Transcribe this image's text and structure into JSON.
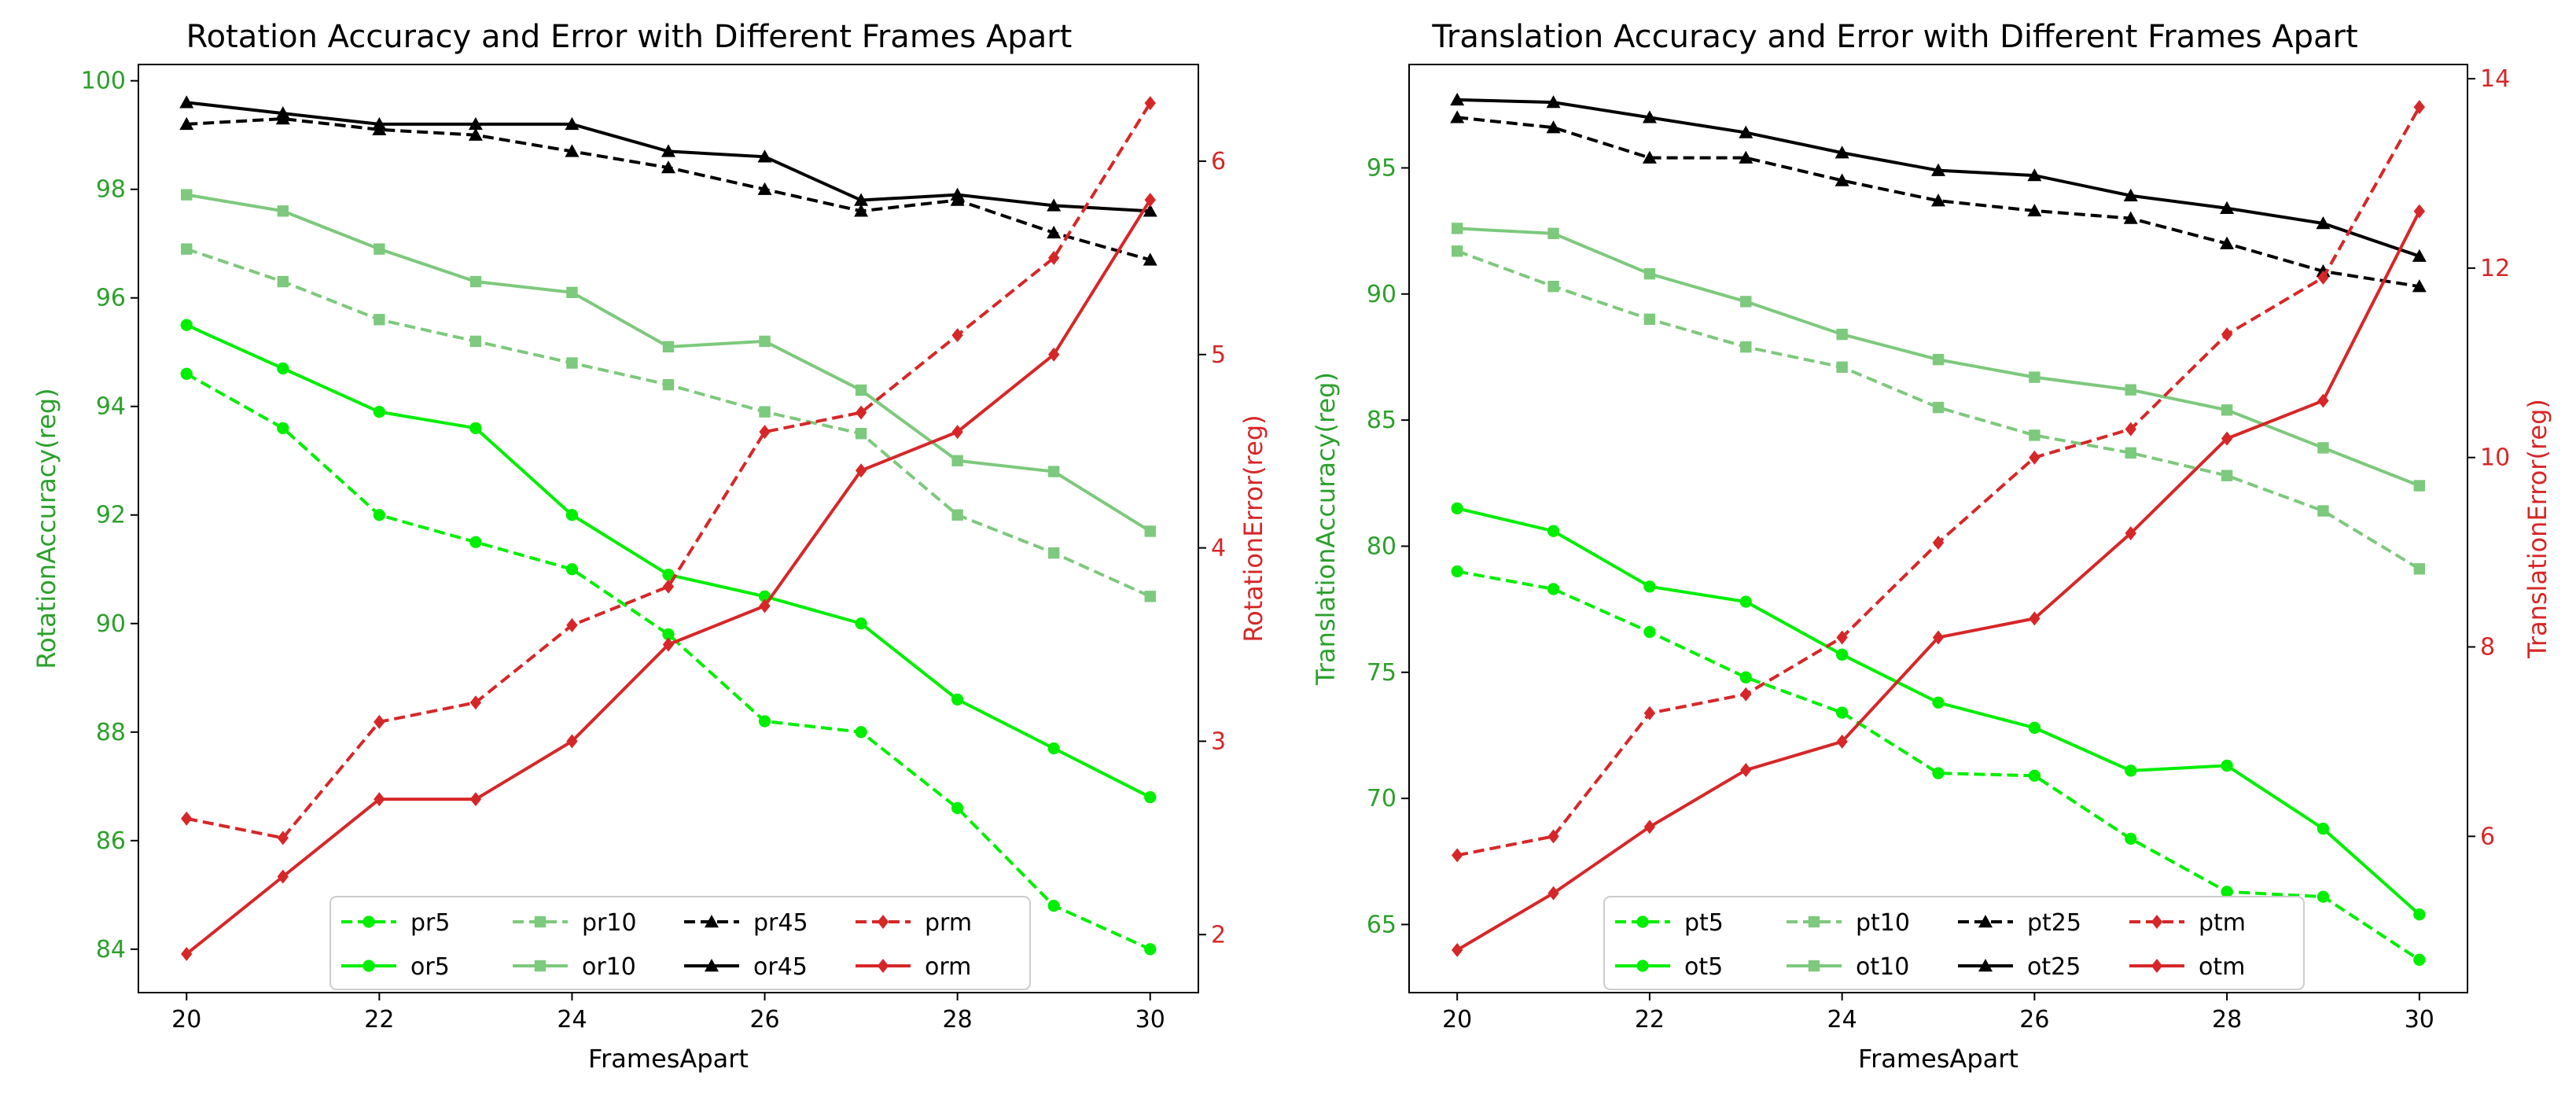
{
  "chart_data": [
    {
      "type": "line",
      "title": "Rotation Accuracy and Error with Different Frames Apart",
      "xlabel": "FramesApart",
      "ylabel_left": "RotationAccuracy(reg)",
      "ylabel_right": "RotationError(reg)",
      "x": [
        20,
        21,
        22,
        23,
        24,
        25,
        26,
        27,
        28,
        29,
        30
      ],
      "xlim": [
        19.5,
        30.5
      ],
      "xticks": [
        20,
        22,
        24,
        26,
        28,
        30
      ],
      "ylim_left": [
        83.2,
        100.3
      ],
      "yticks_left": [
        84,
        86,
        88,
        90,
        92,
        94,
        96,
        98,
        100
      ],
      "ylim_right": [
        1.7,
        6.5
      ],
      "yticks_right": [
        2,
        3,
        4,
        5,
        6
      ],
      "series": [
        {
          "name": "pr5",
          "axis": "left",
          "color": "#00ee00",
          "dash": true,
          "marker": "circle",
          "values": [
            94.6,
            93.6,
            92.0,
            91.5,
            91.0,
            89.8,
            88.2,
            88.0,
            86.6,
            84.8,
            84.0
          ]
        },
        {
          "name": "or5",
          "axis": "left",
          "color": "#00ee00",
          "dash": false,
          "marker": "circle",
          "values": [
            95.5,
            94.7,
            93.9,
            93.6,
            92.0,
            90.9,
            90.5,
            90.0,
            88.6,
            87.7,
            86.8
          ]
        },
        {
          "name": "pr10",
          "axis": "left",
          "color": "#7dc97d",
          "dash": true,
          "marker": "square",
          "values": [
            96.9,
            96.3,
            95.6,
            95.2,
            94.8,
            94.4,
            93.9,
            93.5,
            92.0,
            91.3,
            90.5
          ]
        },
        {
          "name": "or10",
          "axis": "left",
          "color": "#7dc97d",
          "dash": false,
          "marker": "square",
          "values": [
            97.9,
            97.6,
            96.9,
            96.3,
            96.1,
            95.1,
            95.2,
            94.3,
            93.0,
            92.8,
            91.7
          ]
        },
        {
          "name": "pr45",
          "axis": "left",
          "color": "#000000",
          "dash": true,
          "marker": "triangle",
          "values": [
            99.2,
            99.3,
            99.1,
            99.0,
            98.7,
            98.4,
            98.0,
            97.6,
            97.8,
            97.2,
            96.7
          ]
        },
        {
          "name": "or45",
          "axis": "left",
          "color": "#000000",
          "dash": false,
          "marker": "triangle",
          "values": [
            99.6,
            99.4,
            99.2,
            99.2,
            99.2,
            98.7,
            98.6,
            97.8,
            97.9,
            97.7,
            97.6
          ]
        },
        {
          "name": "prm",
          "axis": "right",
          "color": "#d62728",
          "dash": true,
          "marker": "diamond",
          "values": [
            2.6,
            2.5,
            3.1,
            3.2,
            3.6,
            3.8,
            4.6,
            4.7,
            5.1,
            5.5,
            6.3
          ]
        },
        {
          "name": "orm",
          "axis": "right",
          "color": "#d62728",
          "dash": false,
          "marker": "diamond",
          "values": [
            1.9,
            2.3,
            2.7,
            2.7,
            3.0,
            3.5,
            3.7,
            4.4,
            4.6,
            5.0,
            5.8
          ]
        }
      ],
      "legend": {
        "placement": "lower-center",
        "order": [
          "pr5",
          "pr10",
          "pr45",
          "prm",
          "or5",
          "or10",
          "or45",
          "orm"
        ]
      }
    },
    {
      "type": "line",
      "title": "Translation Accuracy and Error with Different Frames Apart",
      "xlabel": "FramesApart",
      "ylabel_left": "TranslationAccuracy(reg)",
      "ylabel_right": "TranslationError(reg)",
      "x": [
        20,
        21,
        22,
        23,
        24,
        25,
        26,
        27,
        28,
        29,
        30
      ],
      "xlim": [
        19.5,
        30.5
      ],
      "xticks": [
        20,
        22,
        24,
        26,
        28,
        30
      ],
      "ylim_left": [
        62.3,
        99.1
      ],
      "yticks_left": [
        65,
        70,
        75,
        80,
        85,
        90,
        95
      ],
      "ylim_right": [
        4.35,
        14.15
      ],
      "yticks_right": [
        6,
        8,
        10,
        12,
        14
      ],
      "series": [
        {
          "name": "pt5",
          "axis": "left",
          "color": "#00ee00",
          "dash": true,
          "marker": "circle",
          "values": [
            79.0,
            78.3,
            76.6,
            74.8,
            73.4,
            71.0,
            70.9,
            68.4,
            66.3,
            66.1,
            63.6
          ]
        },
        {
          "name": "ot5",
          "axis": "left",
          "color": "#00ee00",
          "dash": false,
          "marker": "circle",
          "values": [
            81.5,
            80.6,
            78.4,
            77.8,
            75.7,
            73.8,
            72.8,
            71.1,
            71.3,
            68.8,
            65.4
          ]
        },
        {
          "name": "pt10",
          "axis": "left",
          "color": "#7dc97d",
          "dash": true,
          "marker": "square",
          "values": [
            91.7,
            90.3,
            89.0,
            87.9,
            87.1,
            85.5,
            84.4,
            83.7,
            82.8,
            81.4,
            79.1
          ]
        },
        {
          "name": "ot10",
          "axis": "left",
          "color": "#7dc97d",
          "dash": false,
          "marker": "square",
          "values": [
            92.6,
            92.4,
            90.8,
            89.7,
            88.4,
            87.4,
            86.7,
            86.2,
            85.4,
            83.9,
            82.4
          ]
        },
        {
          "name": "pt25",
          "axis": "left",
          "color": "#000000",
          "dash": true,
          "marker": "triangle",
          "values": [
            97.0,
            96.6,
            95.4,
            95.4,
            94.5,
            93.7,
            93.3,
            93.0,
            92.0,
            90.9,
            90.3
          ]
        },
        {
          "name": "ot25",
          "axis": "left",
          "color": "#000000",
          "dash": false,
          "marker": "triangle",
          "values": [
            97.7,
            97.6,
            97.0,
            96.4,
            95.6,
            94.9,
            94.7,
            93.9,
            93.4,
            92.8,
            91.5
          ]
        },
        {
          "name": "ptm",
          "axis": "right",
          "color": "#d62728",
          "dash": true,
          "marker": "diamond",
          "values": [
            5.8,
            6.0,
            7.3,
            7.5,
            8.1,
            9.1,
            10.0,
            10.3,
            11.3,
            11.9,
            13.7
          ]
        },
        {
          "name": "otm",
          "axis": "right",
          "color": "#d62728",
          "dash": false,
          "marker": "diamond",
          "values": [
            4.8,
            5.4,
            6.1,
            6.7,
            7.0,
            8.1,
            8.3,
            9.2,
            10.2,
            10.6,
            12.6
          ]
        }
      ],
      "legend": {
        "placement": "lower-center",
        "order": [
          "pt5",
          "pt10",
          "pt25",
          "ptm",
          "ot5",
          "ot10",
          "ot25",
          "otm"
        ]
      }
    }
  ],
  "colors": {
    "left_axis": "#2ca02c",
    "right_axis": "#d62728",
    "frame": "#000000"
  }
}
